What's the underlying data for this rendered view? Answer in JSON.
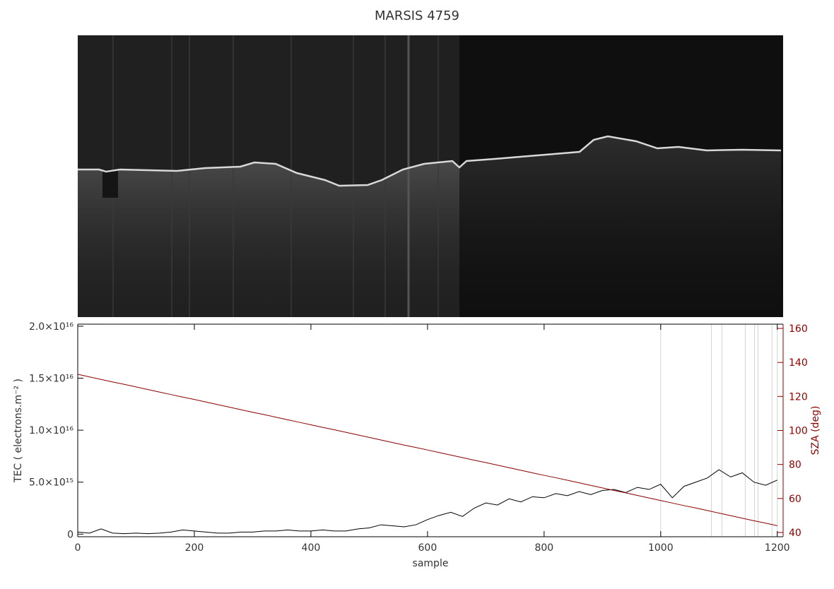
{
  "chart_data": {
    "type": "line",
    "title": "MARSIS 4759",
    "x_label": "sample",
    "y_label": "TEC ( electrons.m⁻² )",
    "y2_label": "SZA (deg)",
    "xlim": [
      0,
      1210
    ],
    "xticks": [
      0,
      200,
      400,
      600,
      800,
      1000,
      1200
    ],
    "ylim": [
      -250000000000000.0,
      2.02e+16
    ],
    "yticks": [
      0,
      {
        "value": 5000000000000000.0,
        "label": "5.0×10¹⁵"
      },
      {
        "value": 1e+16,
        "label": "1.0×10¹⁶"
      },
      {
        "value": 1.5e+16,
        "label": "1.5×10¹⁶"
      },
      {
        "value": 2e+16,
        "label": "2.0×10¹⁶"
      }
    ],
    "y2lim": [
      37.5,
      162.5
    ],
    "y2ticks": [
      40,
      60,
      80,
      100,
      120,
      140,
      160
    ],
    "x": [
      0,
      20,
      40,
      60,
      80,
      100,
      120,
      140,
      160,
      180,
      200,
      220,
      240,
      260,
      280,
      300,
      320,
      340,
      360,
      380,
      400,
      420,
      440,
      460,
      480,
      500,
      520,
      540,
      560,
      580,
      600,
      620,
      640,
      660,
      680,
      700,
      720,
      740,
      760,
      780,
      800,
      820,
      840,
      860,
      880,
      900,
      920,
      940,
      960,
      980,
      1000,
      1020,
      1040,
      1060,
      1080,
      1100,
      1120,
      1140,
      1160,
      1180,
      1200
    ],
    "series": [
      {
        "color": "#000000",
        "values": [
          200000000000000.0,
          100000000000000.0,
          500000000000000.0,
          100000000000000.0,
          50000000000000.0,
          100000000000000.0,
          50000000000000.0,
          100000000000000.0,
          200000000000000.0,
          400000000000000.0,
          300000000000000.0,
          200000000000000.0,
          100000000000000.0,
          100000000000000.0,
          200000000000000.0,
          200000000000000.0,
          300000000000000.0,
          300000000000000.0,
          400000000000000.0,
          300000000000000.0,
          300000000000000.0,
          400000000000000.0,
          300000000000000.0,
          300000000000000.0,
          500000000000000.0,
          600000000000000.0,
          900000000000000.0,
          800000000000000.0,
          700000000000000.0,
          900000000000000.0,
          1400000000000000.0,
          1800000000000000.0,
          2100000000000000.0,
          1700000000000000.0,
          2500000000000000.0,
          3000000000000000.0,
          2800000000000000.0,
          3400000000000000.0,
          3100000000000000.0,
          3600000000000000.0,
          3500000000000000.0,
          3900000000000000.0,
          3700000000000000.0,
          4100000000000000.0,
          3800000000000000.0,
          4200000000000000.0,
          4300000000000000.0,
          4000000000000000.0,
          4500000000000000.0,
          4300000000000000.0,
          4800000000000000.0,
          3500000000000000.0,
          4600000000000000.0,
          5000000000000000.0,
          5400000000000000.0,
          6200000000000000.0,
          5500000000000000.0,
          5900000000000000.0,
          5000000000000000.0,
          4700000000000000.0,
          5200000000000000.0
        ]
      },
      {
        "color": "#8b0000",
        "axis": "y2",
        "values": [
          133.0,
          131.5,
          130.0,
          128.5,
          127.1,
          125.6,
          124.1,
          122.6,
          121.1,
          119.6,
          118.2,
          116.7,
          115.2,
          113.7,
          112.2,
          110.7,
          109.3,
          107.8,
          106.3,
          104.8,
          103.3,
          101.8,
          100.4,
          98.9,
          97.4,
          95.9,
          94.4,
          92.9,
          91.4,
          90.0,
          88.5,
          87.0,
          85.5,
          84.0,
          82.5,
          81.1,
          79.6,
          78.1,
          76.6,
          75.1,
          73.6,
          72.2,
          70.7,
          69.2,
          67.7,
          66.2,
          64.7,
          63.3,
          61.8,
          60.3,
          58.8,
          57.3,
          55.8,
          54.4,
          52.9,
          51.4,
          49.9,
          48.4,
          46.9,
          45.5,
          44.0
        ]
      }
    ],
    "vertical_lines": {
      "color": "#d3d3d3",
      "x": [
        1000,
        1087,
        1105,
        1145,
        1161,
        1167,
        1191,
        1200
      ]
    }
  }
}
